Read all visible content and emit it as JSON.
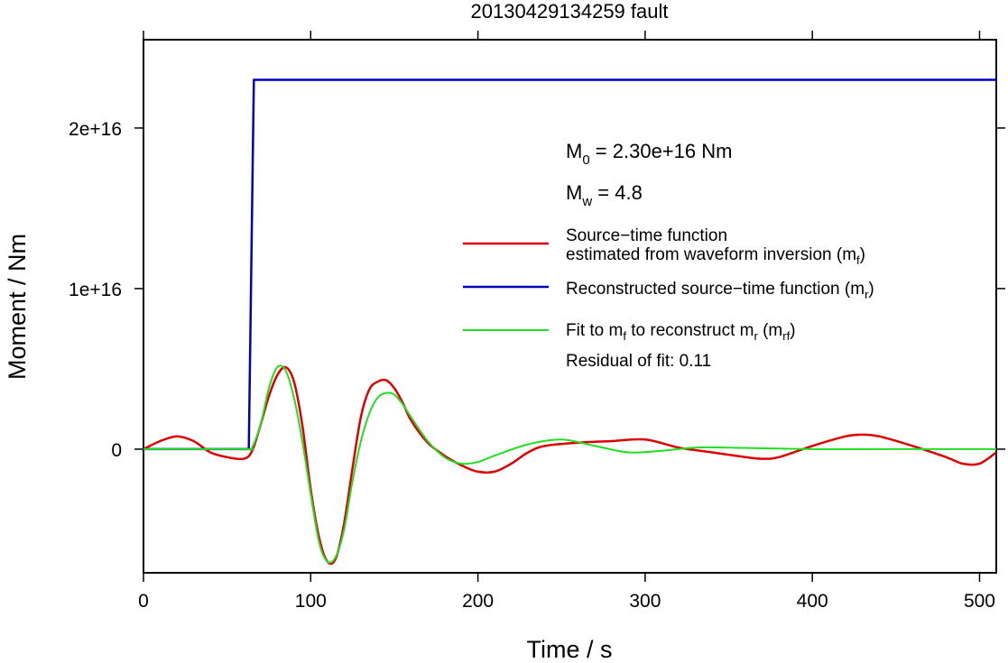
{
  "chart_data": {
    "type": "line",
    "title": "20130429134259 fault",
    "xlabel": "Time / s",
    "ylabel": "Moment / Nm",
    "xlim": [
      0,
      510
    ],
    "ylim": [
      -7700000000000000.0,
      2.55e+16
    ],
    "xticks": [
      0,
      100,
      200,
      300,
      400,
      500
    ],
    "xtick_labels": [
      "0",
      "100",
      "200",
      "300",
      "400",
      "500"
    ],
    "yticks": [
      0,
      1e+16,
      2e+16
    ],
    "ytick_labels": [
      "0",
      "1e+16",
      "2e+16"
    ],
    "grid": false,
    "legend_position": "right",
    "annotations": {
      "m0": {
        "base": "M",
        "sub": "0",
        "text": " = 2.30e+16 Nm"
      },
      "mw": {
        "base": "M",
        "sub": "w",
        "text": " = 4.8"
      },
      "residual": "Residual of fit: 0.11"
    },
    "legend": [
      {
        "line1": "Source−time function",
        "line2": "estimated from waveform inversion (m",
        "sub": "f",
        "close": ")"
      },
      {
        "line1": "Reconstructed source−time function (m",
        "sub": "r",
        "close": ")"
      },
      {
        "line1": "Fit to m",
        "sub1": "f",
        "mid": " to reconstruct m",
        "sub2": "r",
        "mid2": " (m",
        "sub3": "rf",
        "close": ")"
      }
    ],
    "series": [
      {
        "name": "Source−time function estimated from waveform inversion (mf)",
        "color": "#dd0000",
        "x": [
          0,
          10,
          20,
          30,
          40,
          50,
          60,
          65,
          70,
          75,
          80,
          85,
          90,
          95,
          100,
          105,
          110,
          115,
          120,
          125,
          130,
          135,
          140,
          145,
          150,
          155,
          160,
          170,
          180,
          190,
          200,
          210,
          220,
          230,
          240,
          260,
          280,
          300,
          320,
          340,
          360,
          370,
          380,
          400,
          420,
          430,
          440,
          460,
          480,
          490,
          500,
          510
        ],
        "y": [
          0,
          500000000000000.0,
          800000000000000.0,
          500000000000000.0,
          -200000000000000.0,
          -500000000000000.0,
          -600000000000000.0,
          -100000000000000.0,
          1500000000000000.0,
          3300000000000000.0,
          4600000000000000.0,
          5100000000000000.0,
          4200000000000000.0,
          1500000000000000.0,
          -2500000000000000.0,
          -5500000000000000.0,
          -7000000000000000.0,
          -6800000000000000.0,
          -4600000000000000.0,
          -1200000000000000.0,
          2000000000000000.0,
          3700000000000000.0,
          4200000000000000.0,
          4300000000000000.0,
          3800000000000000.0,
          2900000000000000.0,
          1800000000000000.0,
          400000000000000.0,
          -400000000000000.0,
          -1000000000000000.0,
          -1400000000000000.0,
          -1400000000000000.0,
          -900000000000000.0,
          -200000000000000.0,
          200000000000000.0,
          400000000000000.0,
          500000000000000.0,
          600000000000000.0,
          100000000000000.0,
          -200000000000000.0,
          -500000000000000.0,
          -600000000000000.0,
          -500000000000000.0,
          200000000000000.0,
          800000000000000.0,
          900000000000000.0,
          800000000000000.0,
          200000000000000.0,
          -500000000000000.0,
          -900000000000000.0,
          -900000000000000.0,
          -200000000000000.0
        ]
      },
      {
        "name": "Reconstructed source−time function (mr)",
        "color": "#0000bb",
        "x": [
          0,
          63,
          66,
          510
        ],
        "y": [
          0,
          0,
          2.3e+16,
          2.3e+16
        ]
      },
      {
        "name": "Fit to mf to reconstruct mr (mrf)",
        "color": "#22dd22",
        "x": [
          0,
          60,
          63,
          65,
          70,
          75,
          80,
          85,
          90,
          95,
          100,
          105,
          110,
          115,
          120,
          125,
          130,
          135,
          140,
          145,
          150,
          155,
          160,
          170,
          180,
          190,
          200,
          210,
          230,
          250,
          270,
          290,
          310,
          330,
          350,
          400,
          450,
          510
        ],
        "y": [
          0,
          0,
          0,
          100000000000000.0,
          1500000000000000.0,
          3800000000000000.0,
          5100000000000000.0,
          4900000000000000.0,
          3200000000000000.0,
          500000000000000.0,
          -2800000000000000.0,
          -5800000000000000.0,
          -7000000000000000.0,
          -6700000000000000.0,
          -5000000000000000.0,
          -2000000000000000.0,
          500000000000000.0,
          2200000000000000.0,
          3200000000000000.0,
          3500000000000000.0,
          3400000000000000.0,
          2800000000000000.0,
          2000000000000000.0,
          500000000000000.0,
          -500000000000000.0,
          -900000000000000.0,
          -800000000000000.0,
          -400000000000000.0,
          300000000000000.0,
          600000000000000.0,
          200000000000000.0,
          -200000000000000.0,
          -100000000000000.0,
          100000000000000.0,
          100000000000000.0,
          0,
          0,
          0
        ]
      }
    ]
  }
}
